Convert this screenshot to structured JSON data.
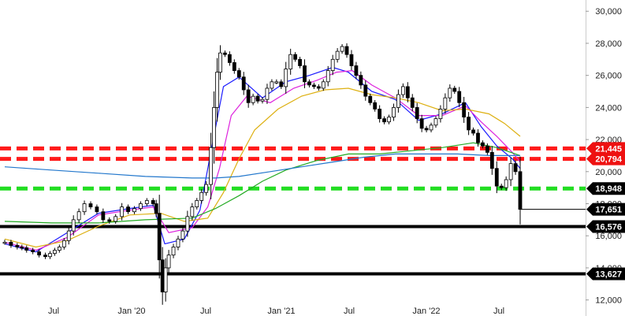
{
  "chart_data": {
    "type": "candlestick",
    "title": "",
    "xlabel": "",
    "ylabel": "",
    "ylim": [
      11000,
      30700
    ],
    "grid": false,
    "x_tick_labels": [
      "Jul",
      "Jan '20",
      "Jul",
      "Jan '21",
      "Jul",
      "Jan '22",
      "Jul"
    ],
    "y_tick_labels": [
      {
        "value": 30000,
        "label": "30,000"
      },
      {
        "value": 28000,
        "label": "28,000"
      },
      {
        "value": 26000,
        "label": "26,000"
      },
      {
        "value": 24000,
        "label": "24,000"
      },
      {
        "value": 22000,
        "label": "22,000"
      },
      {
        "value": 20000,
        "label": "20,000"
      },
      {
        "value": 18000,
        "label": "18,000"
      },
      {
        "value": 16000,
        "label": "16,000"
      },
      {
        "value": 14000,
        "label": "14,000"
      },
      {
        "value": 12000,
        "label": "12,000"
      }
    ],
    "price_levels": [
      {
        "value": 21445,
        "label": "21,445",
        "style": "dashed",
        "color": "#ff1a1a"
      },
      {
        "value": 20794,
        "label": "20,794",
        "style": "dashed",
        "color": "#ff1a1a"
      },
      {
        "value": 18948,
        "label": "18,948",
        "style": "dashed",
        "color": "#22dd22"
      },
      {
        "value": 16576,
        "label": "16,576",
        "style": "solid",
        "color": "#000000"
      },
      {
        "value": 13627,
        "label": "13,627",
        "style": "solid",
        "color": "#000000"
      }
    ],
    "last_price": {
      "value": 17651,
      "label": "17,651"
    },
    "series": [
      {
        "kind": "price",
        "color": "#000000",
        "x": [
          0,
          8,
          16,
          22,
          28,
          36,
          44,
          52,
          58,
          64,
          70,
          76,
          82,
          88,
          95,
          102,
          110,
          118,
          126,
          134,
          142,
          150,
          158,
          166,
          174,
          182,
          190,
          194,
          198,
          202,
          206,
          210,
          216,
          222,
          228,
          234,
          240,
          246,
          252,
          258,
          264,
          268,
          272,
          276,
          282,
          288,
          294,
          300,
          306,
          312,
          318,
          324,
          330,
          336,
          342,
          348,
          354,
          360,
          366,
          372,
          378,
          384,
          390,
          396,
          402,
          408,
          414,
          420,
          426,
          432,
          438,
          444,
          450,
          456,
          462,
          468,
          474,
          480,
          486,
          492,
          498,
          504,
          510,
          516,
          522,
          528,
          534,
          540,
          546,
          552,
          558,
          564,
          570,
          576,
          582,
          588,
          594,
          600,
          606,
          612,
          618,
          624,
          630,
          636,
          642,
          648,
          654,
          660
        ],
        "values": [
          15600,
          15400,
          15300,
          15250,
          15100,
          15000,
          14800,
          14700,
          14900,
          15100,
          15300,
          15700,
          16300,
          17000,
          17500,
          18000,
          17800,
          17500,
          17000,
          16900,
          17200,
          17800,
          17500,
          17700,
          18000,
          18200,
          18000,
          17400,
          14500,
          12500,
          14000,
          14800,
          15300,
          15800,
          16300,
          17200,
          17800,
          18200,
          18700,
          19200,
          21500,
          24000,
          26200,
          27400,
          27300,
          26800,
          26300,
          25900,
          25100,
          24300,
          24700,
          24400,
          24500,
          25200,
          25600,
          25600,
          25300,
          26400,
          27300,
          27000,
          26600,
          25600,
          25400,
          25300,
          25200,
          25600,
          26300,
          27000,
          27500,
          27800,
          27300,
          26600,
          26000,
          25400,
          24700,
          24300,
          23900,
          23300,
          23100,
          23400,
          24000,
          24800,
          25300,
          24600,
          24000,
          23300,
          22700,
          22600,
          22900,
          23300,
          23900,
          24600,
          25200,
          25000,
          24300,
          23400,
          22600,
          22400,
          21800,
          21600,
          21200,
          20200,
          19100,
          19000,
          19500,
          20500,
          20000,
          17651
        ]
      },
      {
        "kind": "ma-short",
        "color": "#1a1aff",
        "x": [
          0,
          40,
          80,
          120,
          160,
          190,
          205,
          230,
          250,
          265,
          280,
          300,
          330,
          360,
          390,
          420,
          440,
          470,
          500,
          530,
          560,
          590,
          610,
          630,
          650,
          660
        ],
        "values": [
          15500,
          15000,
          16200,
          17400,
          17700,
          17900,
          15500,
          15800,
          17600,
          21500,
          25300,
          25900,
          24600,
          25600,
          26000,
          26500,
          26200,
          25000,
          24500,
          23200,
          23600,
          24300,
          22800,
          21600,
          20800,
          20200
        ]
      },
      {
        "kind": "ma-mid",
        "color": "#dd22dd",
        "x": [
          0,
          40,
          80,
          120,
          160,
          190,
          210,
          240,
          260,
          275,
          290,
          310,
          340,
          370,
          400,
          425,
          445,
          470,
          500,
          530,
          560,
          590,
          610,
          630,
          650,
          660
        ],
        "values": [
          15600,
          15100,
          15900,
          17300,
          17600,
          17800,
          16200,
          16500,
          17800,
          20200,
          23500,
          24700,
          24300,
          25200,
          25700,
          26200,
          26300,
          25400,
          24600,
          23500,
          23500,
          24100,
          23100,
          22200,
          21200,
          20600
        ]
      },
      {
        "kind": "ma-50",
        "color": "#ddb011",
        "x": [
          0,
          40,
          80,
          120,
          160,
          200,
          230,
          260,
          280,
          300,
          320,
          350,
          380,
          410,
          440,
          470,
          500,
          530,
          560,
          590,
          620,
          640,
          660
        ],
        "values": [
          15800,
          15300,
          15700,
          16600,
          17300,
          17400,
          16900,
          17100,
          18700,
          20800,
          22600,
          23900,
          24700,
          25100,
          25200,
          24800,
          24600,
          24300,
          23800,
          23900,
          23600,
          23000,
          22200
        ]
      },
      {
        "kind": "ma-150",
        "color": "#22aa22",
        "x": [
          0,
          60,
          120,
          180,
          240,
          270,
          300,
          330,
          360,
          400,
          440,
          480,
          520,
          560,
          600,
          630,
          660
        ],
        "values": [
          16900,
          16800,
          16800,
          17000,
          17100,
          17700,
          18500,
          19400,
          20100,
          20700,
          21100,
          21100,
          21300,
          21500,
          21800,
          21500,
          21000
        ]
      },
      {
        "kind": "ma-200",
        "color": "#2277cc",
        "x": [
          0,
          60,
          120,
          180,
          240,
          270,
          300,
          340,
          380,
          420,
          460,
          500,
          540,
          580,
          620,
          660
        ],
        "values": [
          20300,
          20100,
          19900,
          19700,
          19600,
          19600,
          19700,
          20000,
          20300,
          20600,
          20900,
          21100,
          21100,
          21100,
          21000,
          21000
        ]
      }
    ]
  }
}
